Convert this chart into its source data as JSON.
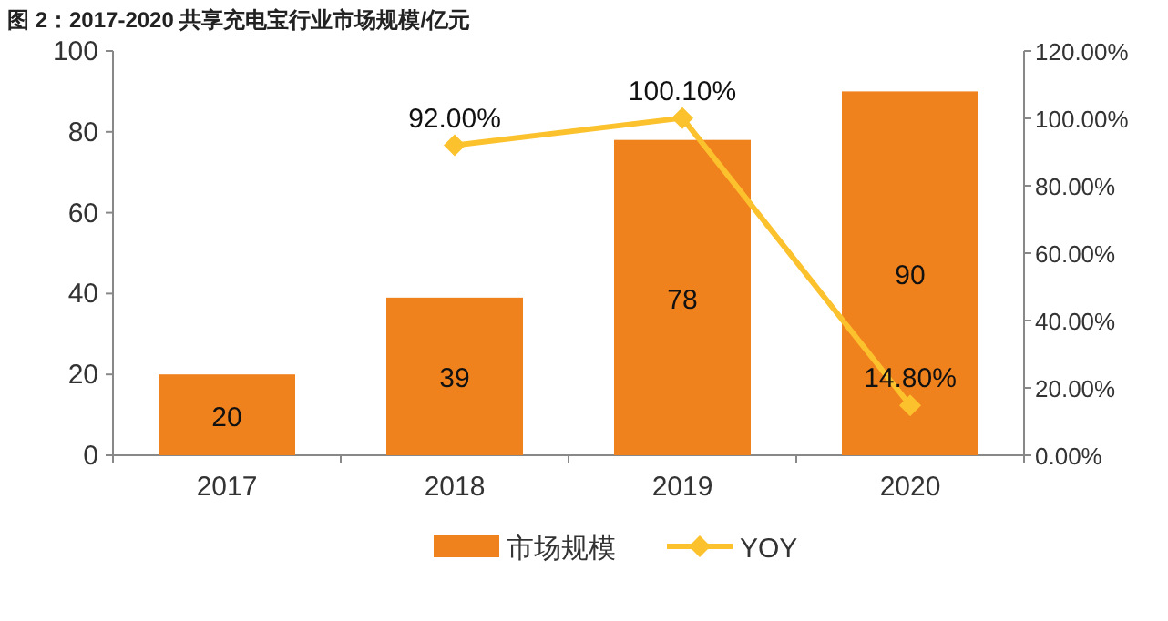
{
  "chart_data": {
    "type": "bar",
    "title": "图 2：2017-2020 共享充电宝行业市场规模/亿元",
    "categories": [
      "2017",
      "2018",
      "2019",
      "2020"
    ],
    "series": [
      {
        "name": "市场规模",
        "color": "#f0821e",
        "values": [
          20,
          39,
          78,
          90
        ],
        "value_labels": [
          "20",
          "39",
          "78",
          "90"
        ]
      },
      {
        "name": "YOY",
        "type": "line",
        "axis": "y2",
        "color": "#fcc22d",
        "marker": "diamond",
        "values": [
          null,
          92.0,
          100.1,
          14.8
        ],
        "value_labels": [
          null,
          "92.00%",
          "100.10%",
          "14.80%"
        ]
      }
    ],
    "ylim": [
      0,
      100
    ],
    "yticks": [
      0,
      20,
      40,
      60,
      80,
      100
    ],
    "y2lim": [
      0,
      120
    ],
    "y2ticks": [
      {
        "value": 0,
        "label": "0.00%"
      },
      {
        "value": 20,
        "label": "20.00%"
      },
      {
        "value": 40,
        "label": "40.00%"
      },
      {
        "value": 60,
        "label": "60.00%"
      },
      {
        "value": 80,
        "label": "80.00%"
      },
      {
        "value": 100,
        "label": "100.00%"
      },
      {
        "value": 120,
        "label": "120.00%"
      }
    ],
    "grid": false,
    "legend": "bottom"
  }
}
